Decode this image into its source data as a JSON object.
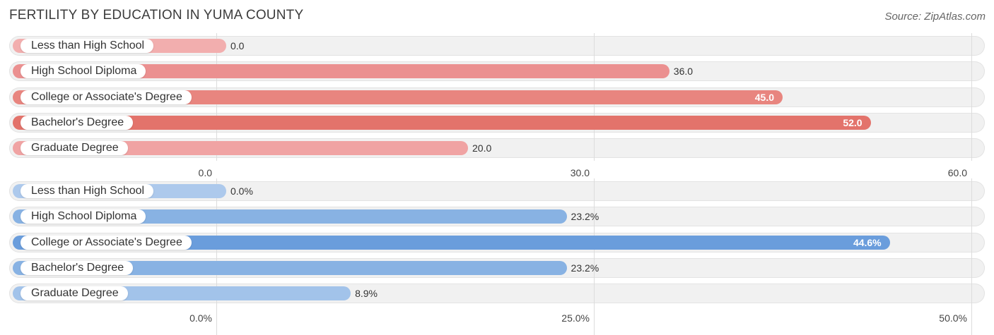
{
  "title": "FERTILITY BY EDUCATION IN YUMA COUNTY",
  "source": "Source: ZipAtlas.com",
  "chart_data": [
    {
      "type": "bar",
      "orientation": "horizontal",
      "categories": [
        "Less than High School",
        "High School Diploma",
        "College or Associate's Degree",
        "Bachelor's Degree",
        "Graduate Degree"
      ],
      "values": [
        0.0,
        36.0,
        45.0,
        52.0,
        20.0
      ],
      "value_labels": [
        "0.0",
        "36.0",
        "45.0",
        "52.0",
        "20.0"
      ],
      "xlim": [
        0,
        60
      ],
      "ticks": [
        0,
        30,
        60
      ],
      "tick_labels": [
        "0.0",
        "30.0",
        "60.0"
      ],
      "colors": [
        "#f2aeae",
        "#eb9090",
        "#e8857f",
        "#e3736b",
        "#f0a3a3"
      ],
      "grid": true
    },
    {
      "type": "bar",
      "orientation": "horizontal",
      "categories": [
        "Less than High School",
        "High School Diploma",
        "College or Associate's Degree",
        "Bachelor's Degree",
        "Graduate Degree"
      ],
      "values": [
        0.0,
        23.2,
        44.6,
        23.2,
        8.9
      ],
      "value_labels": [
        "0.0%",
        "23.2%",
        "44.6%",
        "23.2%",
        "8.9%"
      ],
      "xlim": [
        0,
        50
      ],
      "ticks": [
        0,
        25,
        50
      ],
      "tick_labels": [
        "0.0%",
        "25.0%",
        "50.0%"
      ],
      "colors": [
        "#adc9ec",
        "#88b2e3",
        "#6a9ddc",
        "#88b2e3",
        "#a2c3ea"
      ],
      "grid": true
    }
  ]
}
